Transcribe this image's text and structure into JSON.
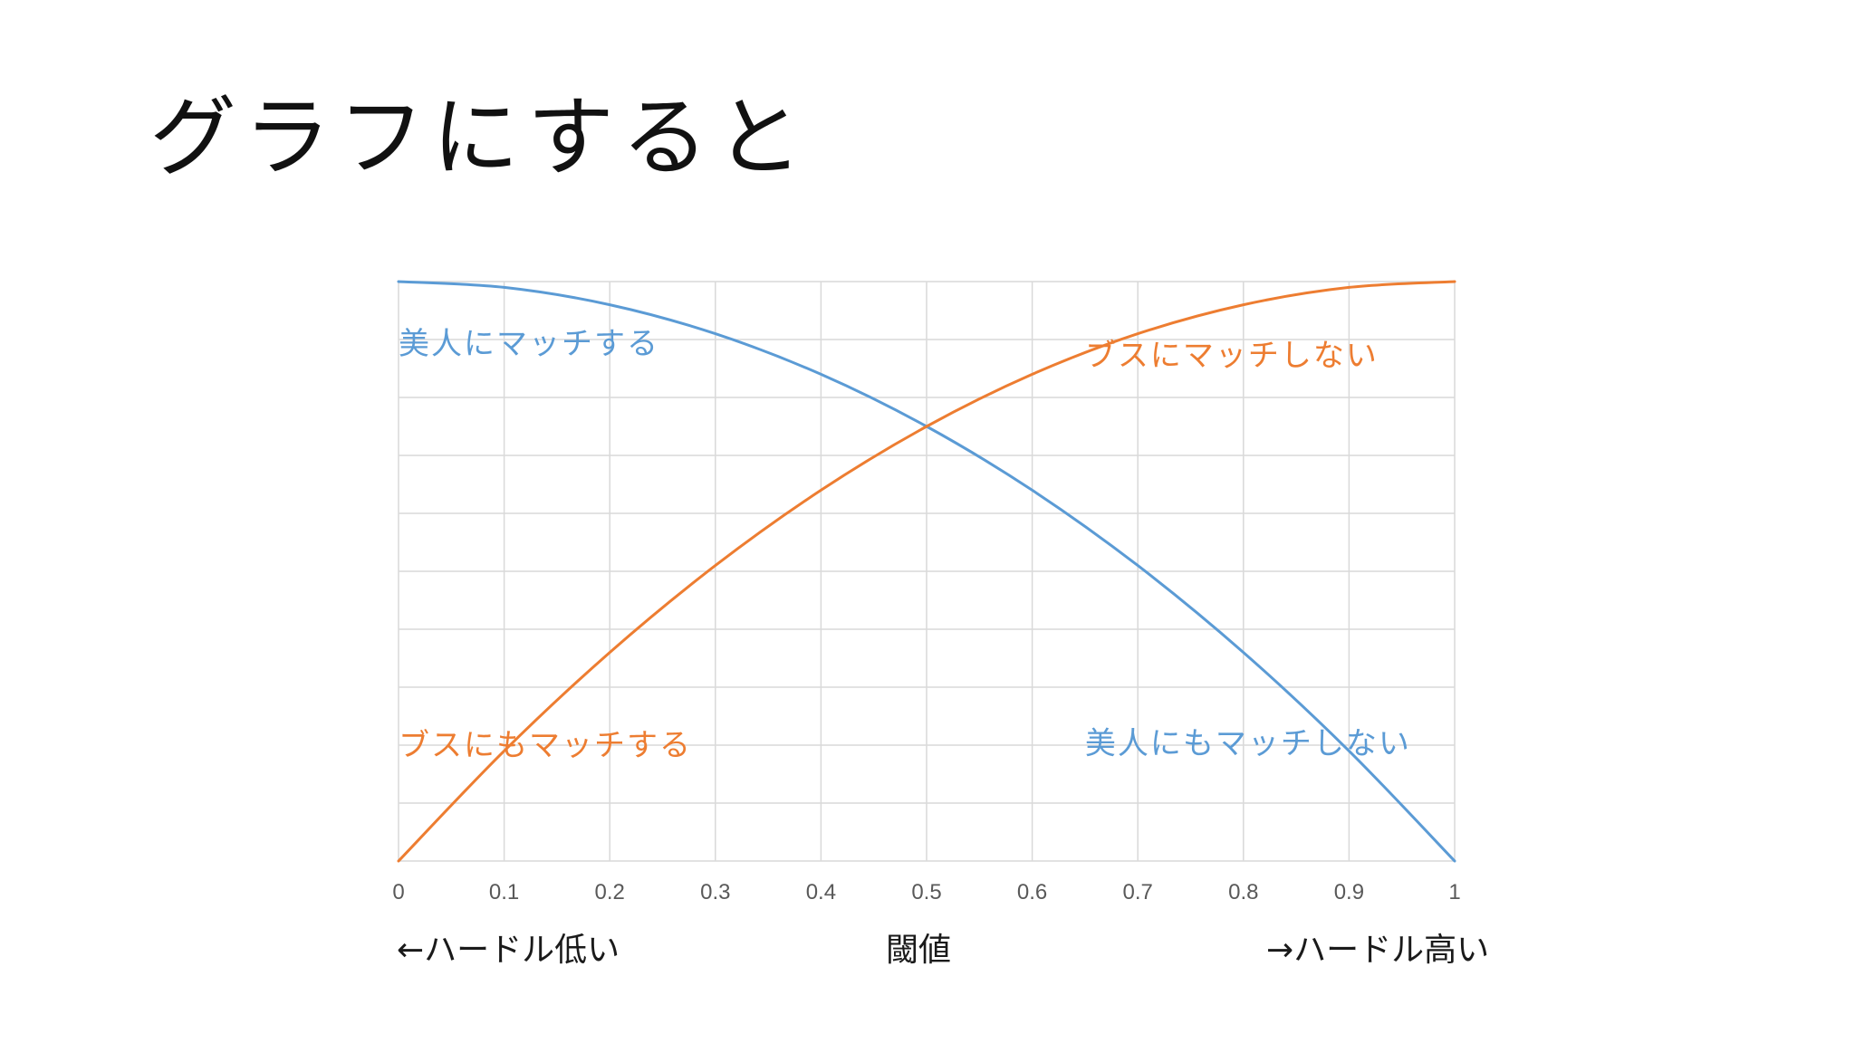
{
  "title": "グラフにすると",
  "colors": {
    "beauty": "#5b9bd5",
    "ugly": "#ed7d31",
    "grid": "#d9d9d9",
    "tick": "#595959"
  },
  "labels": {
    "left_hint": "←ハードル低い",
    "axis_name": "閾値",
    "right_hint": "→ハードル高い"
  },
  "chart_data": {
    "type": "line",
    "xlabel": "閾値",
    "ylabel": "",
    "xlim": [
      0,
      1
    ],
    "ylim": [
      0,
      1
    ],
    "x_ticks": [
      "0",
      "0.1",
      "0.2",
      "0.3",
      "0.4",
      "0.5",
      "0.6",
      "0.7",
      "0.8",
      "0.9",
      "1"
    ],
    "y_gridlines": 10,
    "grid": true,
    "x": [
      0,
      0.1,
      0.2,
      0.3,
      0.4,
      0.5,
      0.6,
      0.7,
      0.8,
      0.9,
      1
    ],
    "series": [
      {
        "key": "beauty",
        "color": "#5b9bd5",
        "values": [
          1.0,
          0.99,
          0.96,
          0.91,
          0.84,
          0.75,
          0.64,
          0.51,
          0.36,
          0.19,
          0.0
        ]
      },
      {
        "key": "ugly",
        "color": "#ed7d31",
        "values": [
          0.0,
          0.19,
          0.36,
          0.51,
          0.64,
          0.75,
          0.84,
          0.91,
          0.96,
          0.99,
          1.0
        ]
      }
    ],
    "annotations": [
      {
        "text": "美人にマッチする",
        "color": "#5b9bd5",
        "x": 0.0,
        "y": 0.875,
        "anchor": "start"
      },
      {
        "text": "ブスにマッチしない",
        "color": "#ed7d31",
        "x": 0.65,
        "y": 0.855,
        "anchor": "start"
      },
      {
        "text": "ブスにもマッチする",
        "color": "#ed7d31",
        "x": 0.0,
        "y": 0.182,
        "anchor": "start"
      },
      {
        "text": "美人にもマッチしない",
        "color": "#5b9bd5",
        "x": 0.65,
        "y": 0.185,
        "anchor": "start"
      }
    ]
  }
}
